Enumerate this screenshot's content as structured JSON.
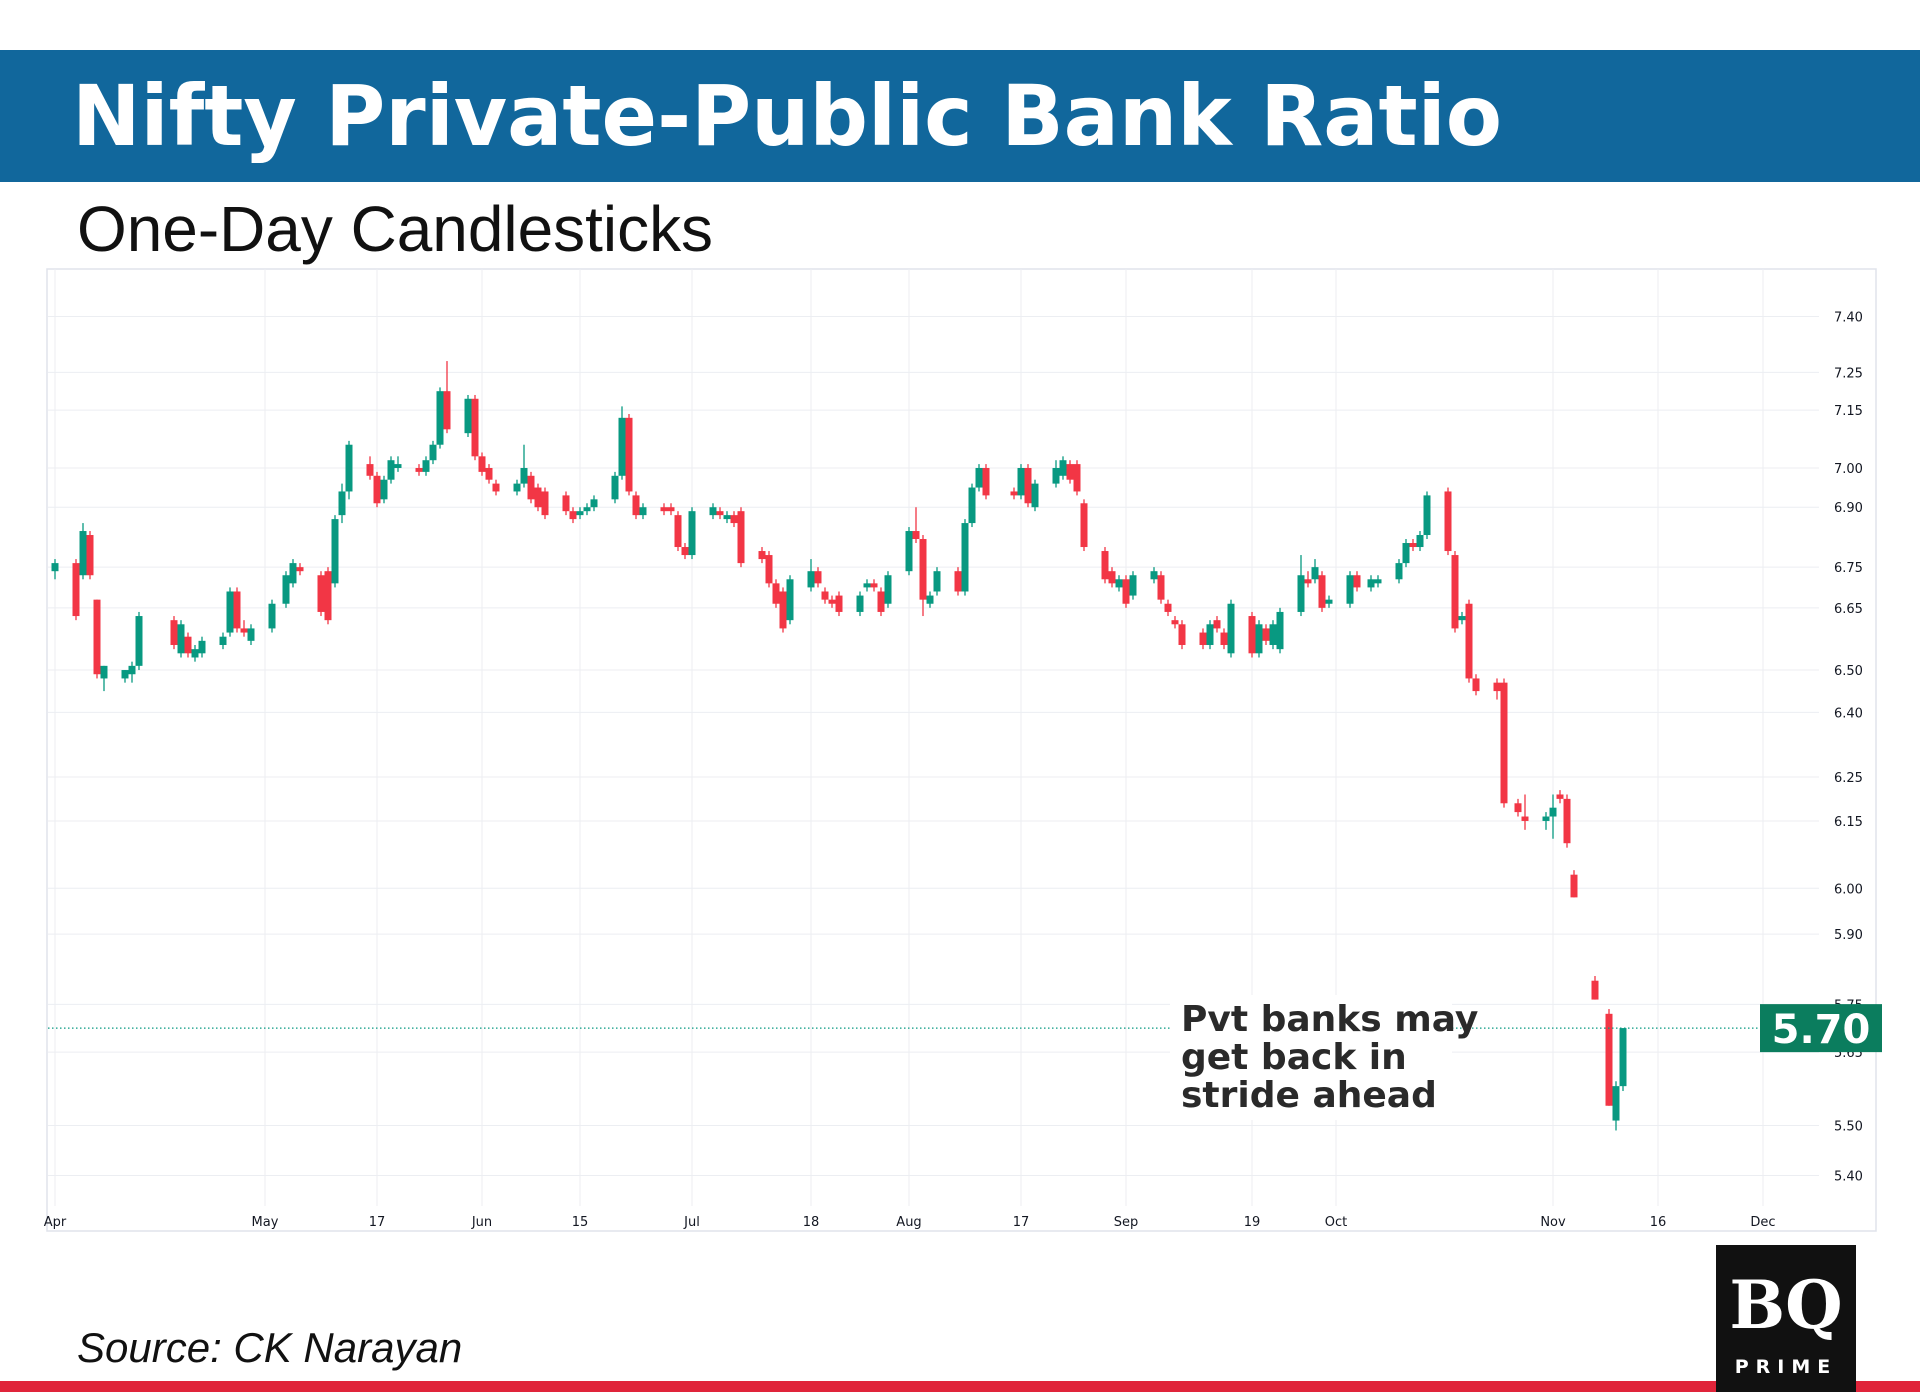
{
  "chart_data": {
    "type": "candlestick",
    "title": "Nifty Private-Public Bank Ratio",
    "subtitle": "One-Day Candlesticks",
    "x": [
      0,
      3,
      4,
      5,
      6,
      7,
      10,
      11,
      12,
      17,
      18,
      19,
      20,
      21,
      24,
      25,
      26,
      27,
      28,
      31,
      33,
      34,
      35,
      38,
      39,
      40,
      41,
      42,
      45,
      46,
      47,
      48,
      49,
      52,
      53,
      54,
      55,
      56,
      59,
      60,
      61,
      62,
      63,
      66,
      67,
      68,
      69,
      70,
      73,
      74,
      75,
      76,
      77,
      80,
      81,
      82,
      83,
      84,
      87,
      88,
      89,
      90,
      91,
      94,
      95,
      96,
      97,
      98,
      101,
      102,
      103,
      104,
      105,
      108,
      109,
      110,
      111,
      112,
      115,
      116,
      117,
      118,
      119,
      122,
      123,
      124,
      125,
      126,
      129,
      130,
      131,
      132,
      133,
      137,
      138,
      139,
      140,
      143,
      144,
      145,
      146,
      147,
      150,
      151,
      152,
      153,
      154,
      157,
      158,
      159,
      160,
      161,
      164,
      165,
      166,
      167,
      168,
      171,
      172,
      173,
      174,
      175,
      178,
      179,
      180,
      181,
      182,
      185,
      186,
      188,
      189,
      192,
      193,
      194,
      195,
      196,
      199,
      200,
      201,
      202,
      203,
      206,
      207,
      209,
      210,
      213,
      214,
      215,
      216,
      217,
      220,
      222,
      223,
      224
    ],
    "open": [
      6.74,
      6.76,
      6.73,
      6.83,
      6.67,
      6.48,
      6.48,
      6.49,
      6.51,
      6.62,
      6.54,
      6.58,
      6.53,
      6.54,
      6.56,
      6.59,
      6.69,
      6.6,
      6.57,
      6.6,
      6.66,
      6.71,
      6.75,
      6.73,
      6.74,
      6.71,
      6.88,
      6.94,
      7.01,
      6.98,
      6.92,
      6.97,
      7.0,
      7.0,
      6.99,
      7.02,
      7.06,
      7.2,
      7.09,
      7.18,
      7.03,
      7.0,
      6.96,
      6.94,
      6.96,
      6.98,
      6.95,
      6.94,
      6.93,
      6.89,
      6.88,
      6.89,
      6.9,
      6.92,
      6.98,
      7.13,
      6.93,
      6.88,
      6.9,
      6.9,
      6.88,
      6.8,
      6.78,
      6.88,
      6.89,
      6.87,
      6.88,
      6.89,
      6.79,
      6.78,
      6.71,
      6.69,
      6.62,
      6.7,
      6.74,
      6.69,
      6.67,
      6.68,
      6.64,
      6.7,
      6.71,
      6.69,
      6.66,
      6.74,
      6.84,
      6.82,
      6.66,
      6.69,
      6.74,
      6.69,
      6.86,
      6.95,
      7.0,
      6.94,
      6.93,
      7.0,
      6.9,
      6.96,
      6.98,
      7.01,
      7.01,
      6.91,
      6.79,
      6.74,
      6.7,
      6.72,
      6.68,
      6.72,
      6.73,
      6.66,
      6.62,
      6.61,
      6.59,
      6.56,
      6.62,
      6.59,
      6.54,
      6.63,
      6.54,
      6.6,
      6.56,
      6.55,
      6.64,
      6.72,
      6.72,
      6.73,
      6.66,
      6.66,
      6.73,
      6.7,
      6.71,
      6.72,
      6.76,
      6.81,
      6.8,
      6.83,
      6.94,
      6.78,
      6.62,
      6.66,
      6.48,
      6.47,
      6.47,
      6.19,
      6.16,
      6.15,
      6.16,
      6.21,
      6.2,
      6.03,
      5.8,
      5.73,
      5.51,
      5.58
    ],
    "high": [
      6.77,
      6.77,
      6.86,
      6.84,
      6.67,
      6.51,
      6.5,
      6.52,
      6.64,
      6.63,
      6.62,
      6.59,
      6.56,
      6.58,
      6.59,
      6.7,
      6.7,
      6.62,
      6.61,
      6.67,
      6.74,
      6.77,
      6.76,
      6.74,
      6.75,
      6.88,
      6.96,
      7.07,
      7.03,
      6.99,
      6.98,
      7.03,
      7.03,
      7.01,
      7.03,
      7.07,
      7.21,
      7.28,
      7.19,
      7.19,
      7.04,
      7.01,
      6.97,
      6.97,
      7.06,
      6.99,
      6.96,
      6.95,
      6.94,
      6.9,
      6.9,
      6.91,
      6.93,
      6.99,
      7.16,
      7.14,
      6.94,
      6.91,
      6.91,
      6.91,
      6.89,
      6.81,
      6.9,
      6.91,
      6.9,
      6.89,
      6.89,
      6.9,
      6.8,
      6.79,
      6.72,
      6.7,
      6.73,
      6.77,
      6.75,
      6.7,
      6.68,
      6.69,
      6.69,
      6.72,
      6.72,
      6.7,
      6.74,
      6.85,
      6.9,
      6.83,
      6.69,
      6.75,
      6.75,
      6.87,
      6.96,
      7.01,
      7.01,
      6.95,
      7.01,
      7.01,
      6.97,
      7.02,
      7.03,
      7.02,
      7.02,
      6.92,
      6.8,
      6.75,
      6.73,
      6.73,
      6.74,
      6.75,
      6.74,
      6.67,
      6.63,
      6.62,
      6.6,
      6.62,
      6.63,
      6.6,
      6.67,
      6.64,
      6.62,
      6.61,
      6.62,
      6.65,
      6.78,
      6.74,
      6.77,
      6.74,
      6.68,
      6.74,
      6.74,
      6.73,
      6.73,
      6.77,
      6.82,
      6.82,
      6.84,
      6.94,
      6.95,
      6.79,
      6.64,
      6.67,
      6.49,
      6.48,
      6.48,
      6.2,
      6.21,
      6.17,
      6.21,
      6.22,
      6.21,
      6.04,
      5.81,
      5.74,
      5.59,
      5.7
    ],
    "low": [
      6.72,
      6.62,
      6.72,
      6.72,
      6.48,
      6.45,
      6.47,
      6.47,
      6.5,
      6.55,
      6.53,
      6.53,
      6.52,
      6.53,
      6.55,
      6.58,
      6.59,
      6.58,
      6.56,
      6.59,
      6.65,
      6.7,
      6.73,
      6.63,
      6.61,
      6.7,
      6.86,
      6.92,
      6.97,
      6.9,
      6.91,
      6.96,
      6.99,
      6.98,
      6.98,
      7.01,
      7.05,
      7.09,
      7.08,
      7.02,
      6.98,
      6.96,
      6.93,
      6.93,
      6.95,
      6.91,
      6.89,
      6.87,
      6.88,
      6.86,
      6.87,
      6.88,
      6.89,
      6.91,
      6.97,
      6.93,
      6.87,
      6.87,
      6.88,
      6.88,
      6.79,
      6.77,
      6.77,
      6.87,
      6.87,
      6.86,
      6.85,
      6.75,
      6.76,
      6.7,
      6.65,
      6.59,
      6.61,
      6.69,
      6.7,
      6.66,
      6.65,
      6.63,
      6.63,
      6.69,
      6.69,
      6.63,
      6.65,
      6.73,
      6.81,
      6.63,
      6.65,
      6.68,
      6.68,
      6.68,
      6.85,
      6.94,
      6.92,
      6.92,
      6.92,
      6.9,
      6.89,
      6.95,
      6.97,
      6.96,
      6.93,
      6.79,
      6.71,
      6.7,
      6.69,
      6.65,
      6.67,
      6.71,
      6.66,
      6.63,
      6.6,
      6.55,
      6.55,
      6.55,
      6.59,
      6.55,
      6.53,
      6.53,
      6.53,
      6.56,
      6.55,
      6.54,
      6.63,
      6.7,
      6.71,
      6.64,
      6.65,
      6.65,
      6.69,
      6.69,
      6.7,
      6.71,
      6.75,
      6.79,
      6.79,
      6.82,
      6.78,
      6.59,
      6.61,
      6.47,
      6.44,
      6.43,
      6.18,
      6.16,
      6.13,
      6.13,
      6.11,
      6.19,
      6.09,
      5.98,
      5.76,
      5.54,
      5.49,
      5.57
    ],
    "close": [
      6.76,
      6.63,
      6.84,
      6.73,
      6.49,
      6.51,
      6.5,
      6.51,
      6.63,
      6.56,
      6.61,
      6.54,
      6.55,
      6.57,
      6.58,
      6.69,
      6.6,
      6.59,
      6.6,
      6.66,
      6.73,
      6.76,
      6.74,
      6.64,
      6.62,
      6.87,
      6.94,
      7.06,
      6.98,
      6.91,
      6.97,
      7.02,
      7.01,
      6.99,
      7.02,
      7.06,
      7.2,
      7.1,
      7.18,
      7.03,
      6.99,
      6.97,
      6.94,
      6.96,
      7.0,
      6.92,
      6.9,
      6.88,
      6.89,
      6.87,
      6.89,
      6.9,
      6.92,
      6.98,
      7.13,
      6.94,
      6.88,
      6.9,
      6.89,
      6.89,
      6.8,
      6.78,
      6.89,
      6.9,
      6.88,
      6.88,
      6.86,
      6.76,
      6.77,
      6.71,
      6.66,
      6.6,
      6.72,
      6.74,
      6.71,
      6.67,
      6.66,
      6.64,
      6.68,
      6.71,
      6.7,
      6.64,
      6.73,
      6.84,
      6.82,
      6.67,
      6.68,
      6.74,
      6.69,
      6.86,
      6.95,
      7.0,
      6.93,
      6.93,
      7.0,
      6.91,
      6.96,
      7.0,
      7.02,
      6.97,
      6.94,
      6.8,
      6.72,
      6.71,
      6.72,
      6.66,
      6.73,
      6.74,
      6.67,
      6.64,
      6.61,
      6.56,
      6.56,
      6.61,
      6.6,
      6.56,
      6.66,
      6.54,
      6.61,
      6.57,
      6.61,
      6.64,
      6.73,
      6.71,
      6.75,
      6.65,
      6.67,
      6.73,
      6.7,
      6.72,
      6.72,
      6.76,
      6.81,
      6.8,
      6.83,
      6.93,
      6.79,
      6.6,
      6.63,
      6.48,
      6.45,
      6.45,
      6.19,
      6.17,
      6.15,
      6.16,
      6.18,
      6.2,
      6.1,
      5.98,
      5.76,
      5.54,
      5.58,
      5.7
    ],
    "up_color": "#089981",
    "down_color": "#f23645",
    "xlim": [
      -1,
      252
    ],
    "xticks": [
      {
        "value": 0,
        "label": "Apr"
      },
      {
        "value": 30,
        "label": "May"
      },
      {
        "value": 46,
        "label": "17"
      },
      {
        "value": 61,
        "label": "Jun"
      },
      {
        "value": 75,
        "label": "15"
      },
      {
        "value": 91,
        "label": "Jul"
      },
      {
        "value": 108,
        "label": "18"
      },
      {
        "value": 122,
        "label": "Aug"
      },
      {
        "value": 138,
        "label": "17"
      },
      {
        "value": 153,
        "label": "Sep"
      },
      {
        "value": 171,
        "label": "19"
      },
      {
        "value": 183,
        "label": "Oct"
      },
      {
        "value": 214,
        "label": "Nov"
      },
      {
        "value": 229,
        "label": "16"
      },
      {
        "value": 244,
        "label": "Dec"
      }
    ],
    "ylim": [
      5.34,
      7.53
    ],
    "log_scale": true,
    "yticks": [
      {
        "value": 7.4,
        "label": "7.40"
      },
      7.25,
      7.15,
      {
        "value": 7.0,
        "label": "7.00"
      },
      {
        "value": 6.9,
        "label": "6.90"
      },
      6.75,
      6.65,
      {
        "value": 6.5,
        "label": "6.50"
      },
      {
        "value": 6.4,
        "label": "6.40"
      },
      6.25,
      6.15,
      {
        "value": 6.0,
        "label": "6.00"
      },
      {
        "value": 5.9,
        "label": "5.90"
      },
      5.75,
      5.65,
      {
        "value": 5.5,
        "label": "5.50"
      },
      {
        "value": 5.4,
        "label": "5.40"
      }
    ],
    "grid": true,
    "last_price": {
      "value": 5.7,
      "label": "5.70"
    },
    "annotation": [
      "Pvt banks may",
      "get back in",
      "stride ahead"
    ],
    "source": "Source: CK Narayan",
    "logo": {
      "mark": "BQ",
      "sub": "PRIME"
    }
  }
}
